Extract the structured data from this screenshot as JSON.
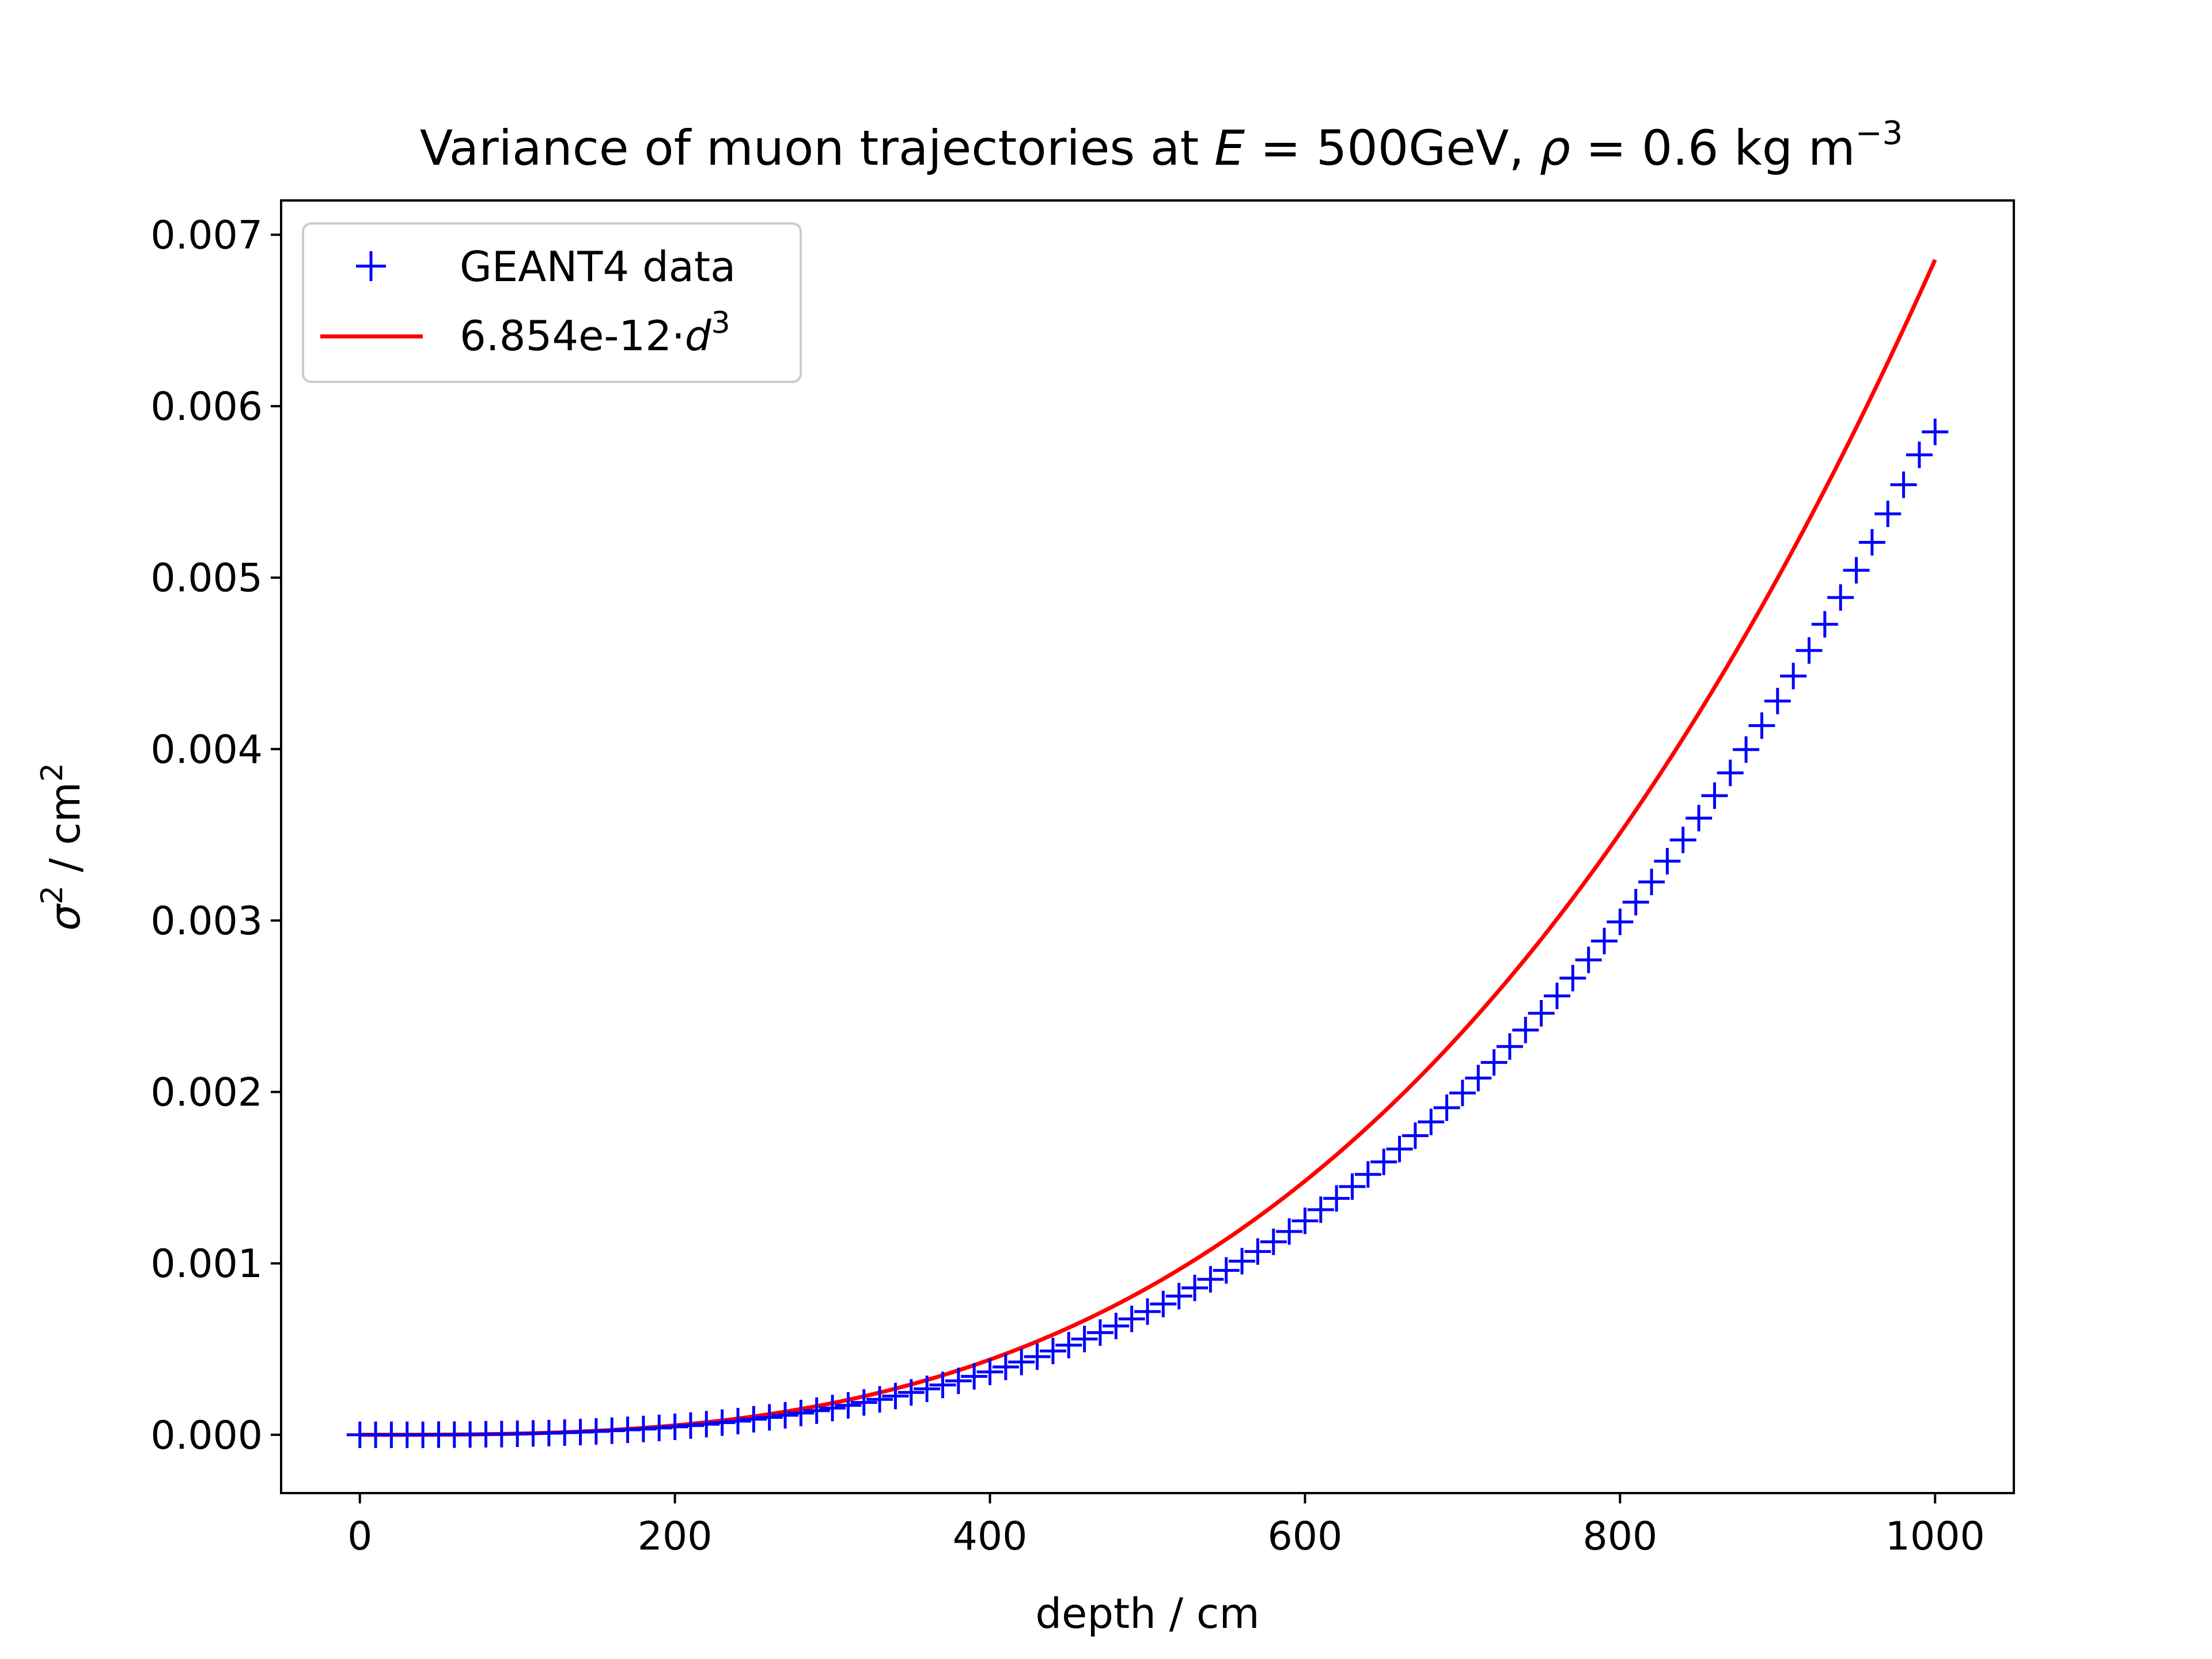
{
  "chart_data": {
    "type": "scatter",
    "title": "Variance of muon trajectories at E = 500GeV, ρ = 0.6 kg m⁻³",
    "title_parts": {
      "lead": "Variance of muon trajectories at ",
      "energy_symbol": "E",
      "energy_rest": " = 500GeV, ",
      "density_symbol": "ρ",
      "density_rest": " = 0.6 kg m",
      "density_exp": "−3"
    },
    "xlabel": "depth / cm",
    "ylabel": "σ² / cm²",
    "ylabel_parts": {
      "symbol": "σ",
      "exp1": "2",
      "mid": " / cm",
      "exp2": "2"
    },
    "xlim": [
      -50,
      1050
    ],
    "ylim": [
      -0.00034,
      0.0072
    ],
    "xticks": [
      0,
      200,
      400,
      600,
      800,
      1000
    ],
    "xtick_labels": [
      "0",
      "200",
      "400",
      "600",
      "800",
      "1000"
    ],
    "yticks": [
      0.0,
      0.001,
      0.002,
      0.003,
      0.004,
      0.005,
      0.006,
      0.007
    ],
    "ytick_labels": [
      "0.000",
      "0.001",
      "0.002",
      "0.003",
      "0.004",
      "0.005",
      "0.006",
      "0.007"
    ],
    "grid": false,
    "legend_position": "top-left",
    "series": [
      {
        "name": "GEANT4 data",
        "kind": "scatter",
        "marker": "plus",
        "color": "#0000ff",
        "x": [
          0,
          10,
          20,
          30,
          40,
          50,
          60,
          70,
          80,
          90,
          100,
          110,
          120,
          130,
          140,
          150,
          160,
          170,
          180,
          190,
          200,
          210,
          220,
          230,
          240,
          250,
          260,
          270,
          280,
          290,
          300,
          310,
          320,
          330,
          340,
          350,
          360,
          370,
          380,
          390,
          400,
          410,
          420,
          430,
          440,
          450,
          460,
          470,
          480,
          490,
          500,
          510,
          520,
          530,
          540,
          550,
          560,
          570,
          580,
          590,
          600,
          610,
          620,
          630,
          640,
          650,
          660,
          670,
          680,
          690,
          700,
          710,
          720,
          730,
          740,
          750,
          760,
          770,
          780,
          790,
          800,
          810,
          820,
          830,
          840,
          850,
          860,
          870,
          880,
          890,
          900,
          910,
          920,
          930,
          940,
          950,
          960,
          970,
          980,
          990,
          1000
        ],
        "y": [
          0.0,
          0.0,
          0.0,
          0.0,
          0.0,
          1e-06,
          1e-06,
          2e-06,
          3e-06,
          4e-06,
          6e-06,
          8e-06,
          1e-05,
          1.3e-05,
          1.6e-05,
          2e-05,
          2.4e-05,
          2.9e-05,
          3.4e-05,
          4e-05,
          4.7e-05,
          5.4e-05,
          6.2e-05,
          7.1e-05,
          8e-05,
          9.1e-05,
          0.000102,
          0.000114,
          0.000127,
          0.000141,
          0.000156,
          0.000172,
          0.000189,
          0.000207,
          0.000226,
          0.000247,
          0.000268,
          0.000291,
          0.000315,
          0.000341,
          0.000367,
          0.000396,
          0.000425,
          0.000456,
          0.000489,
          0.000523,
          0.000559,
          0.000596,
          0.000635,
          0.000676,
          0.000719,
          0.000763,
          0.000809,
          0.000857,
          0.000907,
          0.000959,
          0.001013,
          0.001069,
          0.001126,
          0.001186,
          0.001248,
          0.001313,
          0.001379,
          0.001448,
          0.001519,
          0.001592,
          0.001667,
          0.001745,
          0.001825,
          0.001908,
          0.001994,
          0.002081,
          0.002172,
          0.002265,
          0.002361,
          0.002459,
          0.00256,
          0.002664,
          0.00277,
          0.00288,
          0.002992,
          0.003107,
          0.003225,
          0.003346,
          0.00347,
          0.003597,
          0.003728,
          0.003861,
          0.003997,
          0.004137,
          0.00428,
          0.004426,
          0.004575,
          0.004728,
          0.004884,
          0.005043,
          0.005206,
          0.005372,
          0.005542,
          0.005716,
          0.00585
        ]
      },
      {
        "name": "6.854e-12·d³",
        "name_parts": {
          "coef": "6.854e-12·",
          "var": "d",
          "exp": "3"
        },
        "kind": "line",
        "color": "#ff0000",
        "coefficient": 6.854e-12,
        "exponent": 3,
        "x_range": [
          0,
          1000
        ]
      }
    ]
  }
}
